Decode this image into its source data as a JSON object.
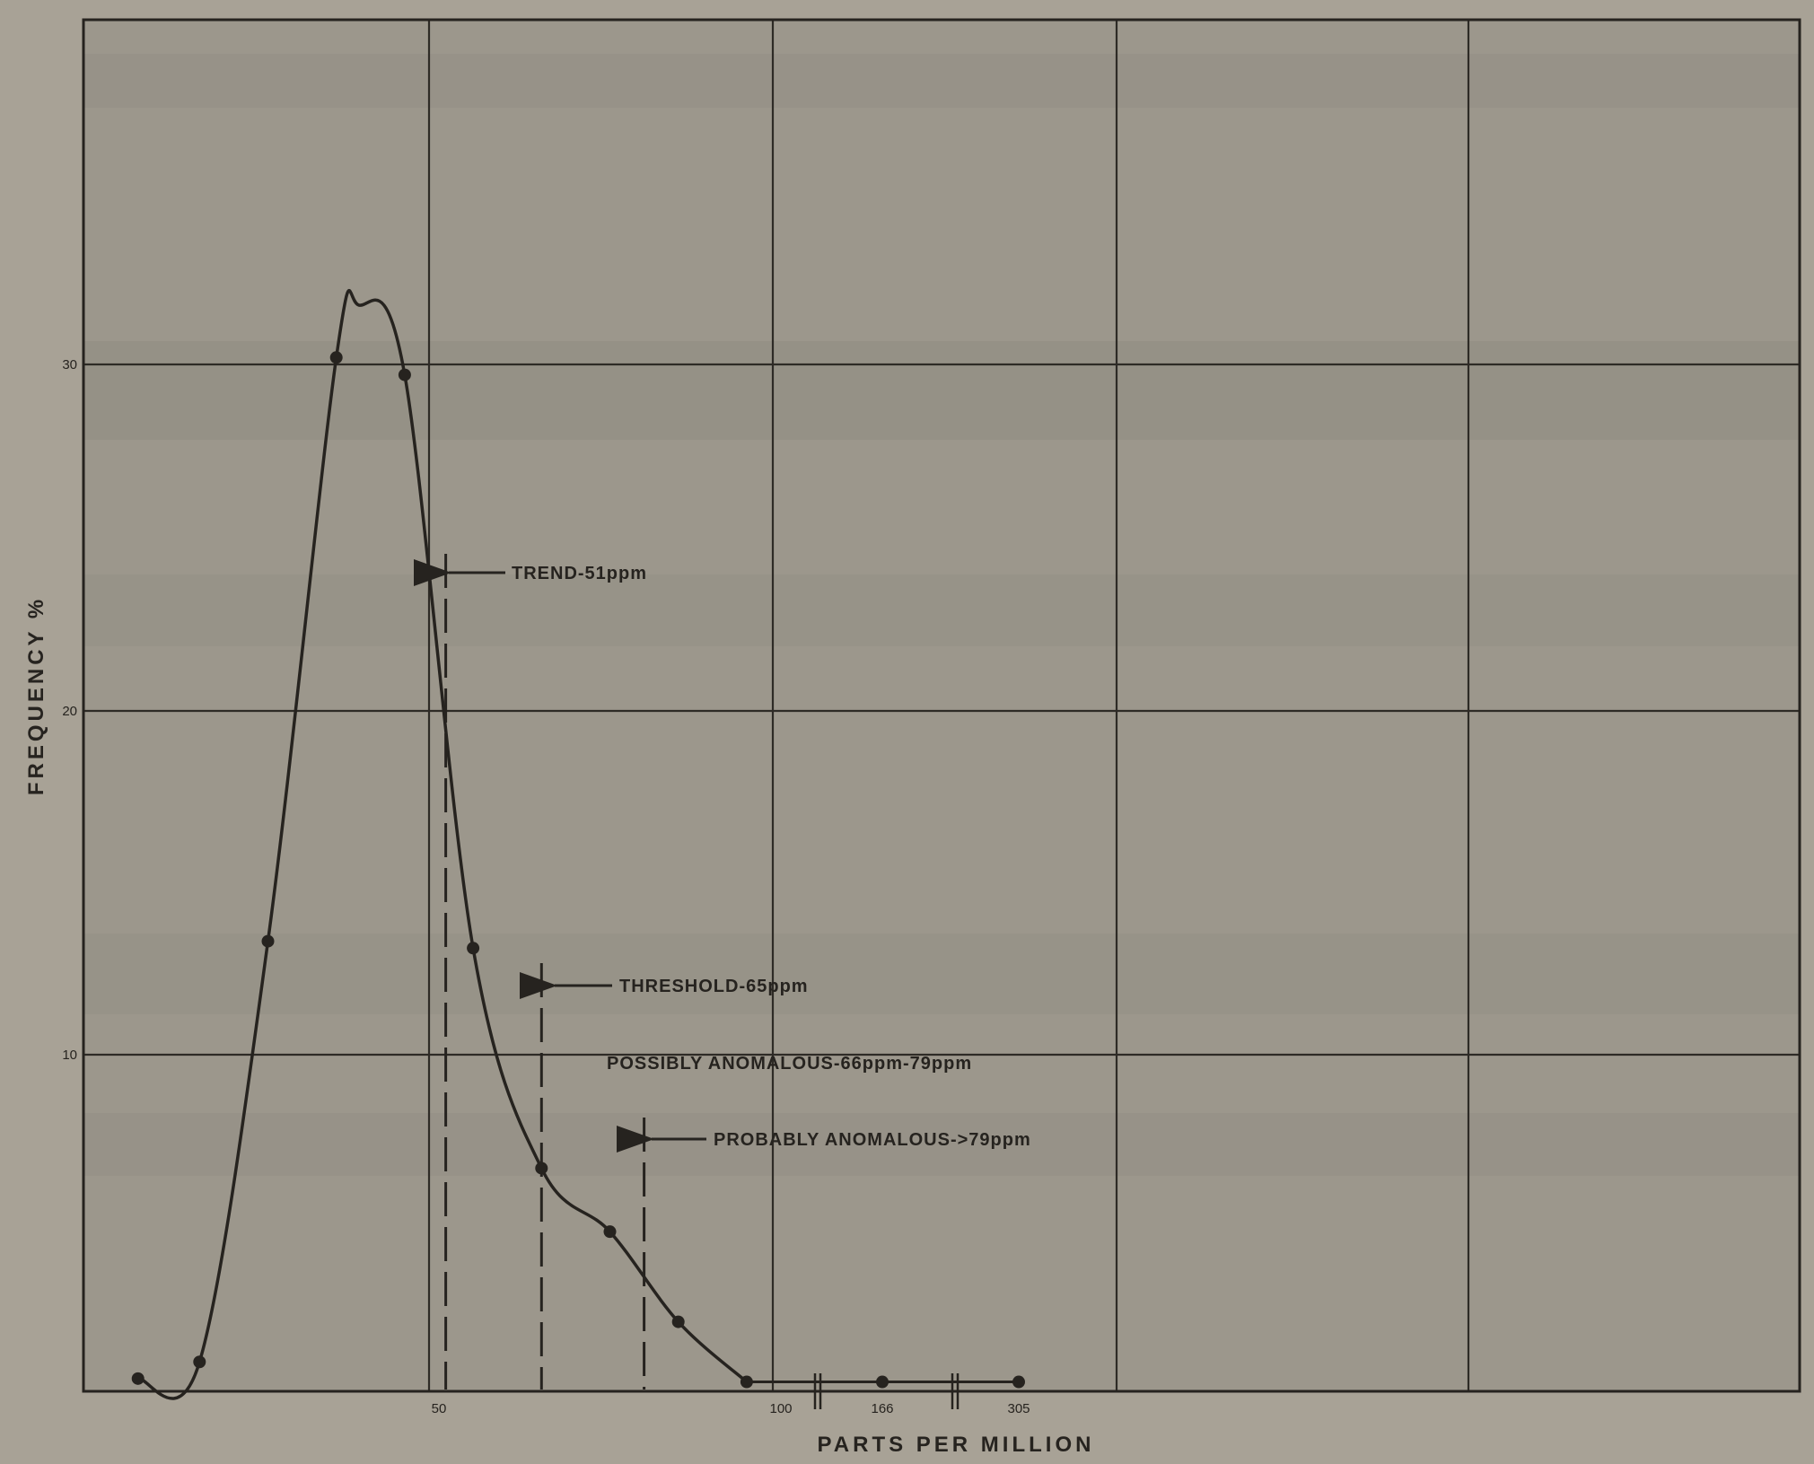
{
  "chart_data": {
    "type": "line",
    "xlabel": "PARTS PER MILLION",
    "ylabel": "FREQUENCY %",
    "x_ticks": [
      "50",
      "100",
      "166",
      "305"
    ],
    "y_ticks": [
      10,
      20,
      30
    ],
    "ylim": [
      0,
      40
    ],
    "grid": true,
    "note": "x axis is broken beyond 100 ppm (break marks between 100 and 166 and between 166 and 305)",
    "series": [
      {
        "points": [
          {
            "x": 6,
            "y": 0.3
          },
          {
            "x": 15,
            "y": 0.8
          },
          {
            "x": 25,
            "y": 13.3
          },
          {
            "x": 35,
            "y": 30.2
          },
          {
            "x": 45,
            "y": 29.7
          },
          {
            "x": 55,
            "y": 13.1
          },
          {
            "x": 65,
            "y": 6.6
          },
          {
            "x": 75,
            "y": 4.7
          },
          {
            "x": 85,
            "y": 2.0
          },
          {
            "x": 95,
            "y": 0.2
          },
          {
            "x": 166,
            "y": 0.2
          },
          {
            "x": 305,
            "y": 0.2
          }
        ]
      }
    ],
    "annotations": [
      {
        "label": "TREND-51ppm",
        "x": 51
      },
      {
        "label": "THRESHOLD-65ppm",
        "x": 65
      },
      {
        "label": "POSSIBLY ANOMALOUS-66ppm-79ppm",
        "x_range": [
          66,
          79
        ]
      },
      {
        "label": "PROBABLY ANOMALOUS->79ppm",
        "x": 80
      }
    ]
  },
  "colors": {
    "background": "#a8a296",
    "plot_area": "#9c978c",
    "ink": "#26231f",
    "grid": "#2e2b26"
  }
}
